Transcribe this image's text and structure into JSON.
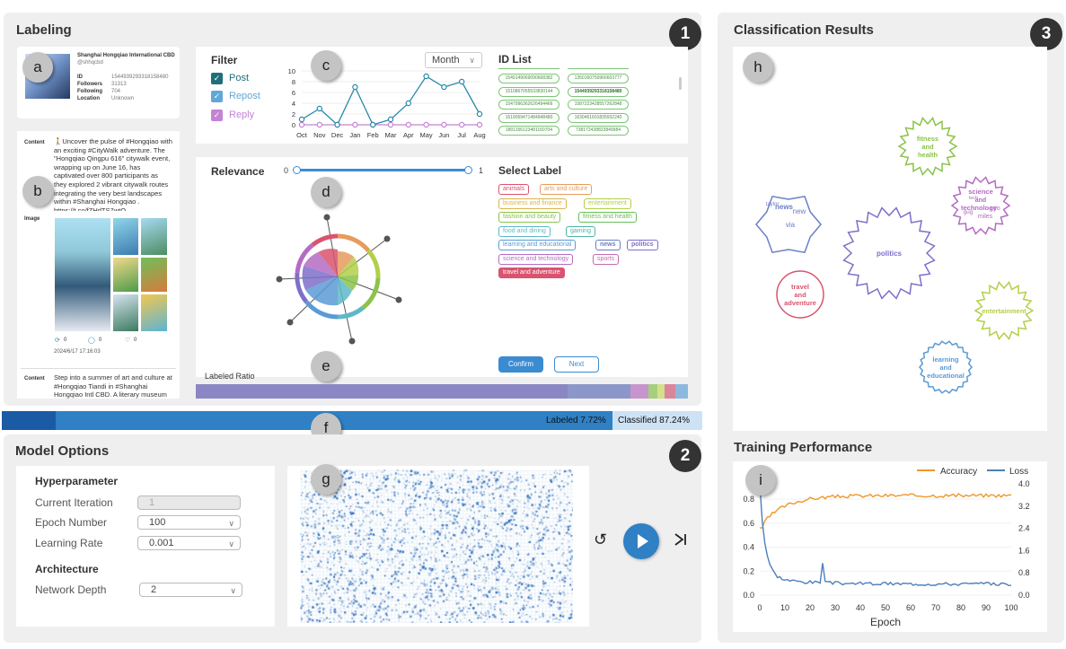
{
  "labeling": {
    "title": "Labeling",
    "num": "1"
  },
  "classification": {
    "title": "Classification Results",
    "num": "3"
  },
  "training": {
    "title": "Training Performance"
  },
  "model": {
    "title": "Model Options",
    "num": "2"
  },
  "badges": {
    "a": "a",
    "b": "b",
    "c": "c",
    "d": "d",
    "e": "e",
    "f": "f",
    "g": "g",
    "h": "h",
    "i": "i"
  },
  "profile": {
    "name": "Shanghai Hongqiao International CBD",
    "handle": "@shhqcbd",
    "id_label": "ID",
    "id": "1544939293318158480",
    "followers_label": "Followers",
    "followers": "31313",
    "following_label": "Following",
    "following": "704",
    "location_label": "Location",
    "location": "Unknown"
  },
  "post": {
    "content_label": "Content",
    "content": "🚶Uncover the pulse of #Hongqiao with an exciting #CityWalk adventure. The \"Hongqiao Qingpu 616\" citywalk event, wrapping up on June 16, has captivated over 800 participants as they explored 2 vibrant citywalk routes integrating the very best landscapes within #Shanghai Hongqiao . https://t.co/fZHdTS7wtO",
    "image_label": "Image",
    "reposts": "0",
    "replies": "0",
    "likes": "0",
    "timestamp": "2024/6/17 17:16:03",
    "content_label2": "Content",
    "content2": "Step into a summer of art and culture at #Hongqiao Tiandi in #Shanghai Hongqiao Intl CBD. A literary museum"
  },
  "filter": {
    "title": "Filter",
    "post": "Post",
    "repost": "Repost",
    "reply": "Reply",
    "period": "Month",
    "id_list_title": "ID List"
  },
  "id_list": {
    "col1": [
      "1549149069090668382",
      "1510867055533830144",
      "1547996362626494466",
      "1619059471484948480",
      "1801156123481160704"
    ],
    "col2": [
      "1350160750966603777",
      "1544939293318158480",
      "1587223428557262848",
      "1630461601835932240",
      "738172438823849984"
    ]
  },
  "chart_data": {
    "type": "line",
    "categories": [
      "Oct",
      "Nov",
      "Dec",
      "Jan",
      "Feb",
      "Mar",
      "Apr",
      "May",
      "Jun",
      "Jul",
      "Aug"
    ],
    "ylim": [
      0,
      10
    ],
    "yticks": [
      "0",
      "2",
      "4",
      "6",
      "8",
      "10"
    ],
    "series": [
      {
        "name": "Post",
        "color": "#2a8aa8",
        "values": [
          1,
          3,
          0,
          7,
          0,
          1,
          4,
          9,
          7,
          8,
          2
        ]
      },
      {
        "name": "Reply",
        "color": "#c483d4",
        "values": [
          0,
          0,
          0,
          0,
          0,
          0,
          0,
          0,
          0,
          0,
          0
        ]
      }
    ]
  },
  "relevance": {
    "title": "Relevance",
    "min": "0",
    "max": "1"
  },
  "labels": {
    "title": "Select Label",
    "items": [
      "animals",
      "arts and culture",
      "business and finance",
      "entertainment",
      "fashion and beauty",
      "fitness and health",
      "food and dining",
      "gaming",
      "learning and educational",
      "news",
      "politics",
      "science and technology",
      "sports",
      "travel and adventure"
    ],
    "confirm": "Confirm",
    "next": "Next"
  },
  "ratio": {
    "title": "Labeled Ratio"
  },
  "progress": {
    "labeled": "Labeled 7.72%",
    "classified": "Classified 87.24%",
    "labeled_fraction": 0.0772,
    "classified_fraction": 0.8724
  },
  "hyper": {
    "title": "Hyperparameter",
    "iteration_label": "Current Iteration",
    "iteration": "1",
    "epoch_label": "Epoch Number",
    "epoch": "100",
    "lr_label": "Learning Rate",
    "lr": "0.001",
    "arch_title": "Architecture",
    "depth_label": "Network Depth",
    "depth": "2"
  },
  "bubbles": [
    {
      "label": "fitness and health",
      "color": "#8bc34a"
    },
    {
      "label": "science and technology",
      "color": "#b56bc4"
    },
    {
      "label": "politics",
      "color": "#7e6fc9"
    },
    {
      "label": "travel and adventure",
      "color": "#d9546f"
    },
    {
      "label": "entertainment",
      "color": "#b3cf4a"
    },
    {
      "label": "learning and educational",
      "color": "#5b9bd5"
    },
    {
      "label": "news",
      "color": "#6a7ec7"
    }
  ],
  "bubble_words": {
    "news": [
      "taylor",
      "news",
      "new",
      "via"
    ],
    "sci": [
      "science",
      "and",
      "technology",
      "ceo",
      "tech",
      "gug",
      "miles"
    ]
  },
  "perf": {
    "legend_acc": "Accuracy",
    "legend_loss": "Loss",
    "xlabel": "Epoch",
    "xticks": [
      "0",
      "10",
      "20",
      "30",
      "40",
      "50",
      "60",
      "70",
      "80",
      "90",
      "100"
    ],
    "yleft": [
      "0.0",
      "0.2",
      "0.4",
      "0.6",
      "0.8"
    ],
    "yright": [
      "0.0",
      "0.8",
      "1.6",
      "2.4",
      "3.2",
      "4.0"
    ]
  }
}
